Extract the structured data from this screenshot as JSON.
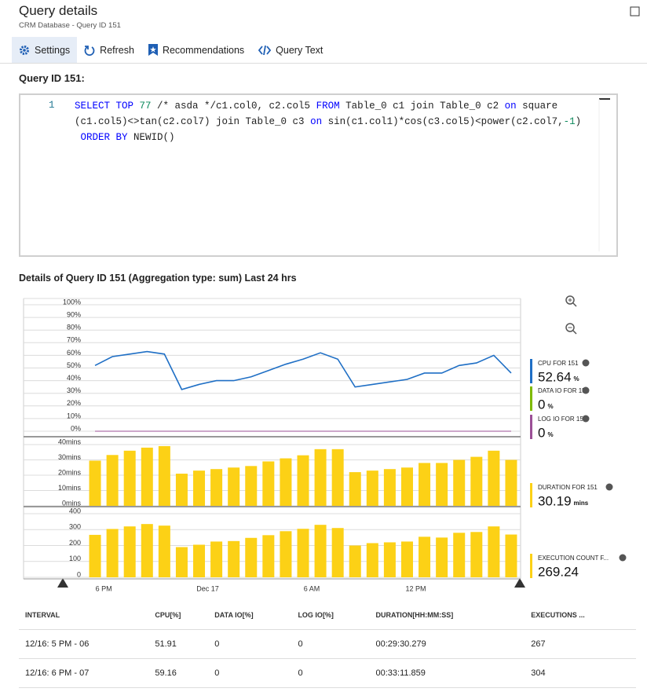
{
  "header": {
    "title": "Query details",
    "subtitle": "CRM Database - Query ID 151"
  },
  "toolbar": [
    "Settings",
    "Refresh",
    "Recommendations",
    "Query Text"
  ],
  "query": {
    "label": "Query ID 151:",
    "line_number": 1,
    "lines": [
      [
        {
          "text": "SELECT TOP",
          "color": "#0000ff"
        },
        {
          "text": " 77 ",
          "color": "#09885a"
        },
        {
          "text": "/* asda */c1.col0, c2.col5 ",
          "color": "#222222"
        },
        {
          "text": "FROM",
          "color": "#0000ff"
        },
        {
          "text": " Table_0 c1 join Table_0 c2 ",
          "color": "#222222"
        },
        {
          "text": "on",
          "color": "#0000ff"
        },
        {
          "text": " square",
          "color": "#222222"
        }
      ],
      [
        {
          "text": "(c1.col5)<>tan(c2.col7) join Table_0 c3 ",
          "color": "#222222"
        },
        {
          "text": "on",
          "color": "#0000ff"
        },
        {
          "text": " sin(c1.col1)*cos(c3.col5)<power(c2.col7,",
          "color": "#222222"
        },
        {
          "text": "-1",
          "color": "#09885a"
        },
        {
          "text": ")",
          "color": "#222222"
        }
      ],
      [
        {
          "text": " ",
          "color": "#222222"
        },
        {
          "text": "ORDER BY",
          "color": "#0000ff"
        },
        {
          "text": " NEWID()",
          "color": "#222222"
        }
      ]
    ]
  },
  "details_title": "Details of Query ID 151 (Aggregation type: sum) Last 24 hrs",
  "chart_data": [
    {
      "type": "line",
      "grid": true,
      "ylim": [
        0,
        100
      ],
      "yticks": [
        {
          "value": 0,
          "label": "0%"
        },
        {
          "value": 10,
          "label": "10%"
        },
        {
          "value": 20,
          "label": "20%"
        },
        {
          "value": 30,
          "label": "30%"
        },
        {
          "value": 40,
          "label": "40%"
        },
        {
          "value": 50,
          "label": "50%"
        },
        {
          "value": 60,
          "label": "60%"
        },
        {
          "value": 70,
          "label": "70%"
        },
        {
          "value": 80,
          "label": "80%"
        },
        {
          "value": 90,
          "label": "90%"
        },
        {
          "value": 100,
          "label": "100%"
        }
      ],
      "series": [
        {
          "name": "CPU FOR 151",
          "color": "#1f6fc5",
          "legend_value": 52.64,
          "unit": "%",
          "values": [
            52,
            59,
            61,
            63,
            61,
            33,
            37,
            40,
            40,
            43,
            48,
            53,
            57,
            62,
            57,
            35,
            37,
            39,
            41,
            46,
            46,
            52,
            54,
            60,
            46
          ]
        },
        {
          "name": "DATA IO FOR 151",
          "color": "#7fba00",
          "legend_value": 0,
          "unit": "%",
          "values": [
            0,
            0,
            0,
            0,
            0,
            0,
            0,
            0,
            0,
            0,
            0,
            0,
            0,
            0,
            0,
            0,
            0,
            0,
            0,
            0,
            0,
            0,
            0,
            0,
            0
          ]
        },
        {
          "name": "LOG IO FOR 151",
          "color": "#9b4f96",
          "legend_value": 0,
          "unit": "%",
          "values": [
            0,
            0,
            0,
            0,
            0,
            0,
            0,
            0,
            0,
            0,
            0,
            0,
            0,
            0,
            0,
            0,
            0,
            0,
            0,
            0,
            0,
            0,
            0,
            0,
            0
          ]
        }
      ]
    },
    {
      "type": "bar",
      "grid": true,
      "ylim": [
        0,
        40
      ],
      "yticks": [
        {
          "value": 0,
          "label": "0mins"
        },
        {
          "value": 10,
          "label": "10mins"
        },
        {
          "value": 20,
          "label": "20mins"
        },
        {
          "value": 30,
          "label": "30mins"
        },
        {
          "value": 40,
          "label": "40mins"
        }
      ],
      "series": [
        {
          "name": "DURATION FOR 151",
          "color": "#fcd116",
          "legend_value": 30.19,
          "unit": "mins",
          "values": [
            29.5,
            33.2,
            36,
            38,
            39,
            21,
            23,
            24,
            25,
            26,
            29,
            31,
            33,
            37,
            37,
            22,
            23,
            24,
            25,
            28,
            28,
            30,
            32,
            36,
            30
          ]
        }
      ]
    },
    {
      "type": "bar",
      "grid": true,
      "ylim": [
        0,
        400
      ],
      "yticks": [
        0,
        100,
        200,
        300,
        400
      ],
      "categories": [
        null,
        "6 PM",
        null,
        null,
        null,
        null,
        null,
        "Dec 17",
        null,
        null,
        null,
        null,
        null,
        "6 AM",
        null,
        null,
        null,
        null,
        null,
        "12 PM",
        null,
        null,
        null,
        null,
        null
      ],
      "series": [
        {
          "name": "EXECUTION COUNT F...",
          "color": "#fcd116",
          "legend_value": 269.24,
          "values": [
            267,
            304,
            320,
            335,
            325,
            190,
            205,
            225,
            228,
            248,
            265,
            290,
            305,
            330,
            310,
            200,
            215,
            220,
            225,
            255,
            250,
            280,
            285,
            320,
            269
          ]
        }
      ]
    }
  ],
  "table": {
    "header": [
      "INTERVAL",
      "CPU[%]",
      "DATA IO[%]",
      "LOG IO[%]",
      "DURATION[HH:MM:SS]",
      "EXECUTIONS ..."
    ],
    "rows": [
      [
        "12/16: 5 PM - 06",
        "51.91",
        "0",
        "0",
        "00:29:30.279",
        "267"
      ],
      [
        "12/16: 6 PM - 07",
        "59.16",
        "0",
        "0",
        "00:33:11.859",
        "304"
      ]
    ]
  }
}
